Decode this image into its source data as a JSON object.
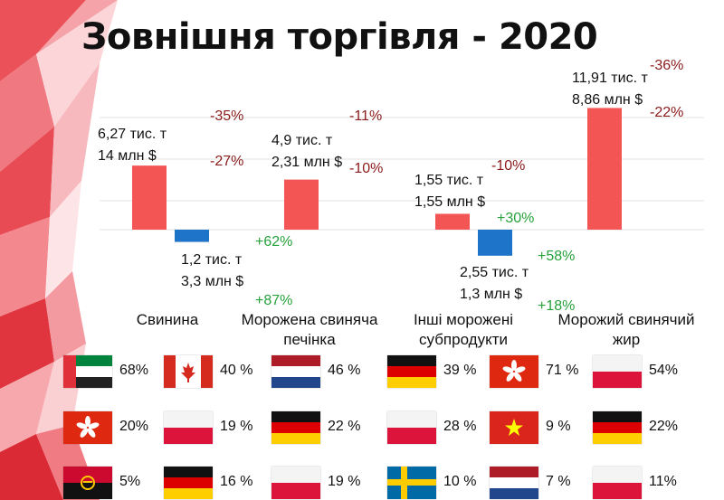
{
  "title": "Зовнішня торгівля - 2020",
  "colors": {
    "export": "#f35454",
    "import": "#1d74c8",
    "negative": "#8b1a1a",
    "positive": "#27a13b"
  },
  "chart_data": {
    "type": "bar",
    "categories": [
      "Свинина",
      "Морожена свиняча печінка",
      "Інші морожені субпродукти",
      "Морожий свинячий жир"
    ],
    "series": [
      {
        "values": [
          6.27,
          4.9,
          1.55,
          11.91
        ]
      },
      {
        "values": [
          -1.2,
          0,
          -2.55,
          0
        ]
      }
    ],
    "annotations": {
      "export_lines": [
        [
          "6,27 тис. т",
          "14 млн $"
        ],
        [
          "4,9 тис. т",
          "2,31 млн $"
        ],
        [
          "1,55 тис. т",
          "1,55 млн $"
        ],
        [
          "11,91 тис. т",
          "8,86 млн $"
        ]
      ],
      "export_changes": [
        [
          "-35%",
          "-27%"
        ],
        [
          "-11%",
          "-10%"
        ],
        [
          "-10%"
        ],
        [
          "-36%",
          "-22%"
        ]
      ],
      "import_lines": [
        [
          "1,2 тис. т",
          "3,3 млн $"
        ],
        [],
        [
          "2,55 тис. т",
          "1,3 млн $"
        ],
        []
      ],
      "import_changes": [
        [
          "+62%",
          "+87%"
        ],
        [],
        [
          "+30%",
          "+58%",
          "+18%"
        ],
        []
      ]
    }
  },
  "countries": [
    {
      "export": [
        {
          "flag": "uae",
          "pct": "68%"
        },
        {
          "flag": "hongkong",
          "pct": "20%"
        },
        {
          "flag": "angola",
          "pct": "5%"
        }
      ],
      "import": [
        {
          "flag": "canada",
          "pct": "40 %"
        },
        {
          "flag": "poland",
          "pct": "19 %"
        },
        {
          "flag": "germany",
          "pct": "16 %"
        }
      ]
    },
    {
      "export": [
        {
          "flag": "netherlands",
          "pct": "46 %"
        },
        {
          "flag": "germany",
          "pct": "22 %"
        },
        {
          "flag": "poland",
          "pct": "19 %"
        }
      ]
    },
    {
      "export": [
        {
          "flag": "germany",
          "pct": "39 %"
        },
        {
          "flag": "poland",
          "pct": "28 %"
        },
        {
          "flag": "sweden",
          "pct": "10 %"
        }
      ]
    },
    {
      "export": [
        {
          "flag": "hongkong",
          "pct": "71 %"
        },
        {
          "flag": "vietnam",
          "pct": "9 %"
        },
        {
          "flag": "netherlands",
          "pct": "7 %"
        }
      ],
      "import": [
        {
          "flag": "poland",
          "pct": "54%"
        },
        {
          "flag": "germany",
          "pct": "22%"
        },
        {
          "flag": "poland",
          "pct": "11%"
        }
      ]
    }
  ]
}
